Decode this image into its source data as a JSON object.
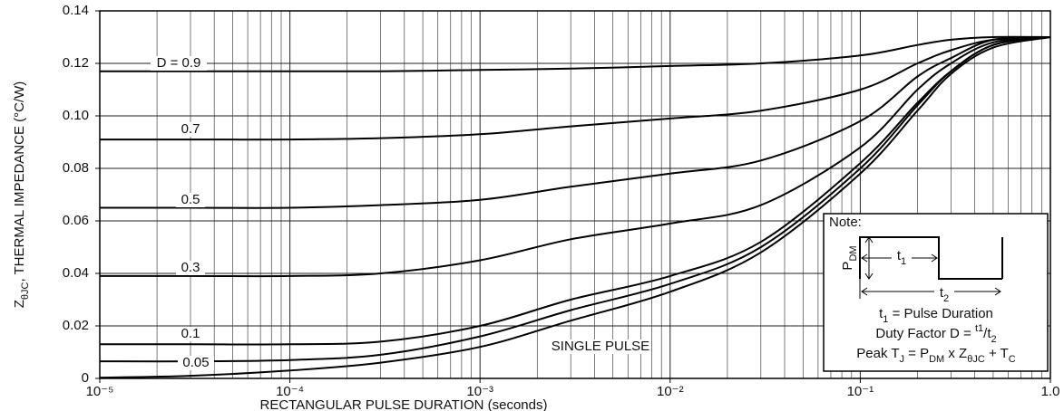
{
  "chart_data": {
    "type": "line",
    "y_label": [
      {
        "text": "Z"
      },
      {
        "text": "θJC",
        "sub": true
      },
      {
        "text": ", THERMAL IMPEDANCE (°C/W)"
      }
    ],
    "x_label": "RECTANGULAR PULSE DURATION (seconds)",
    "log_x": true,
    "grid": true,
    "xlim": [
      1e-05,
      1
    ],
    "xticks": [
      {
        "value": 1e-05,
        "label": "10⁻⁵"
      },
      {
        "value": 0.0001,
        "label": "10⁻⁴"
      },
      {
        "value": 0.001,
        "label": "10⁻³"
      },
      {
        "value": 0.01,
        "label": "10⁻²"
      },
      {
        "value": 0.1,
        "label": "10⁻¹"
      },
      {
        "value": 1,
        "label": "1.0"
      }
    ],
    "ylim": [
      0,
      0.14
    ],
    "yticks": [
      0,
      0.02,
      0.04,
      0.06,
      0.08,
      {
        "value": 0.1,
        "label": "0.10"
      },
      0.12,
      0.14
    ],
    "x": [
      1e-05,
      3e-05,
      0.0001,
      0.0003,
      0.001,
      0.003,
      0.01,
      0.03,
      0.1,
      0.2,
      0.3,
      0.5,
      1
    ],
    "series": [
      {
        "name": "D = 0.9",
        "color": "#000000",
        "values": [
          0.117,
          0.117,
          0.117,
          0.117,
          0.1175,
          0.118,
          0.119,
          0.12,
          0.123,
          0.127,
          0.129,
          0.13,
          0.13
        ]
      },
      {
        "name": "0.7",
        "color": "#000000",
        "values": [
          0.091,
          0.091,
          0.091,
          0.0915,
          0.093,
          0.096,
          0.099,
          0.102,
          0.11,
          0.12,
          0.125,
          0.129,
          0.13
        ]
      },
      {
        "name": "0.5",
        "color": "#000000",
        "values": [
          0.065,
          0.065,
          0.065,
          0.066,
          0.068,
          0.073,
          0.078,
          0.083,
          0.098,
          0.115,
          0.122,
          0.129,
          0.13
        ]
      },
      {
        "name": "0.3",
        "color": "#000000",
        "values": [
          0.039,
          0.039,
          0.039,
          0.04,
          0.045,
          0.053,
          0.059,
          0.066,
          0.088,
          0.11,
          0.12,
          0.128,
          0.13
        ]
      },
      {
        "name": "0.1",
        "color": "#000000",
        "values": [
          0.013,
          0.013,
          0.013,
          0.014,
          0.02,
          0.03,
          0.039,
          0.052,
          0.082,
          0.105,
          0.117,
          0.127,
          0.13
        ]
      },
      {
        "name": "0.05",
        "color": "#000000",
        "values": [
          0.0065,
          0.0065,
          0.007,
          0.009,
          0.016,
          0.026,
          0.036,
          0.05,
          0.08,
          0.104,
          0.117,
          0.127,
          0.13
        ]
      },
      {
        "name": "SINGLE PULSE",
        "color": "#000000",
        "values": [
          0.0003,
          0.001,
          0.003,
          0.006,
          0.012,
          0.022,
          0.033,
          0.048,
          0.078,
          0.102,
          0.116,
          0.126,
          0.13
        ]
      }
    ],
    "note": {
      "title": "Note:",
      "pdm": [
        {
          "text": "P"
        },
        {
          "text": "DM",
          "sub": true
        }
      ],
      "t1": [
        {
          "text": "t"
        },
        {
          "text": "1",
          "sub": true
        }
      ],
      "t2": [
        {
          "text": "t"
        },
        {
          "text": "2",
          "sub": true
        }
      ],
      "lines": [
        [
          {
            "text": "t"
          },
          {
            "text": "1",
            "sub": true
          },
          {
            "text": " = Pulse Duration"
          }
        ],
        [
          {
            "text": "Duty Factor D = "
          },
          {
            "text": "t1",
            "sup": true
          },
          {
            "text": "/t"
          },
          {
            "text": "2",
            "sub": true
          }
        ],
        [
          {
            "text": "Peak T"
          },
          {
            "text": "J",
            "sub": true
          },
          {
            "text": " = P"
          },
          {
            "text": "DM",
            "sub": true
          },
          {
            "text": " x Z"
          },
          {
            "text": "θJC",
            "sub": true
          },
          {
            "text": " + T"
          },
          {
            "text": "C",
            "sub": true
          }
        ]
      ]
    }
  }
}
